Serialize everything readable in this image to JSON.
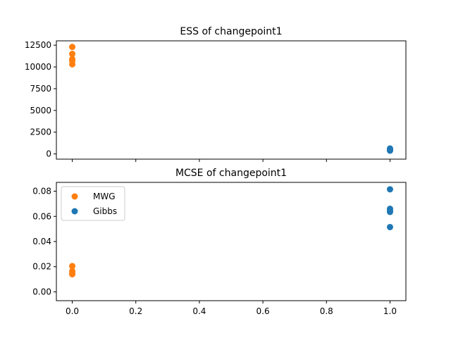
{
  "colors": {
    "mwg": "#ff7f0e",
    "gibbs": "#1f77b4"
  },
  "chart_data": [
    {
      "type": "scatter",
      "title": "ESS of changepoint1",
      "xlim": [
        -0.05,
        1.05
      ],
      "ylim": [
        -600,
        13000
      ],
      "x_ticks": [
        0.0,
        0.2,
        0.4,
        0.6,
        0.8,
        1.0
      ],
      "x_tick_labels_shown": false,
      "y_ticks": [
        0,
        2500,
        5000,
        7500,
        10000,
        12500
      ],
      "y_tick_labels": [
        "0",
        "2500",
        "5000",
        "7500",
        "10000",
        "12500"
      ],
      "series": [
        {
          "color": "#ff7f0e",
          "x": [
            0,
            0,
            0,
            0,
            0
          ],
          "y": [
            12300,
            11500,
            10900,
            10700,
            10300
          ]
        },
        {
          "color": "#1f77b4",
          "x": [
            1,
            1,
            1,
            1
          ],
          "y": [
            620,
            520,
            430,
            380
          ]
        }
      ]
    },
    {
      "type": "scatter",
      "title": "MCSE of changepoint1",
      "xlim": [
        -0.05,
        1.05
      ],
      "ylim": [
        -0.007,
        0.087
      ],
      "x_ticks": [
        0.0,
        0.2,
        0.4,
        0.6,
        0.8,
        1.0
      ],
      "x_tick_labels": [
        "0.0",
        "0.2",
        "0.4",
        "0.6",
        "0.8",
        "1.0"
      ],
      "y_ticks": [
        0.0,
        0.02,
        0.04,
        0.06,
        0.08
      ],
      "y_tick_labels": [
        "0.00",
        "0.02",
        "0.04",
        "0.06",
        "0.08"
      ],
      "legend_position": "upper-left",
      "series": [
        {
          "name": "MWG",
          "color": "#ff7f0e",
          "x": [
            0,
            0,
            0,
            0
          ],
          "y": [
            0.0205,
            0.0165,
            0.0145,
            0.014
          ]
        },
        {
          "name": "Gibbs",
          "color": "#1f77b4",
          "x": [
            1,
            1,
            1,
            1,
            1
          ],
          "y": [
            0.0815,
            0.066,
            0.0645,
            0.0635,
            0.0515
          ]
        }
      ]
    }
  ]
}
